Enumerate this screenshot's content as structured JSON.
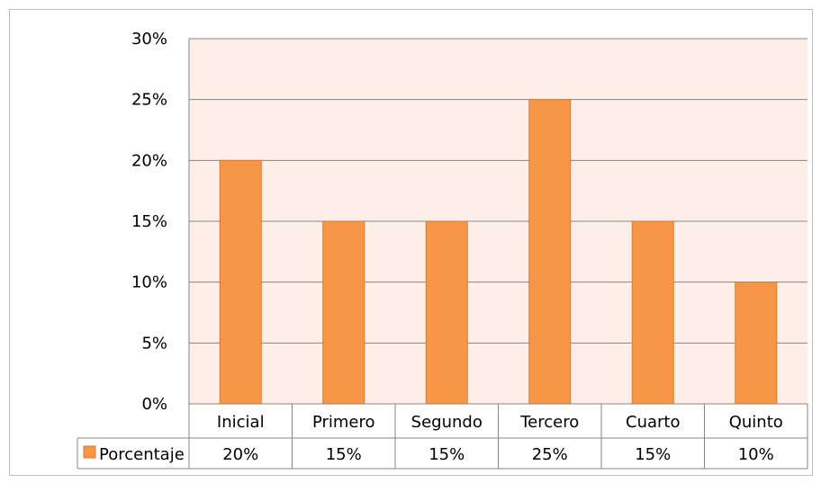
{
  "chart_data": {
    "type": "bar",
    "categories": [
      "Inicial",
      "Primero",
      "Segundo",
      "Tercero",
      "Cuarto",
      "Quinto"
    ],
    "series": [
      {
        "name": "Porcentaje",
        "values": [
          20,
          15,
          15,
          25,
          15,
          10
        ],
        "color": "#f79646"
      }
    ],
    "value_labels": [
      "20%",
      "15%",
      "15%",
      "25%",
      "15%",
      "10%"
    ],
    "y_ticks": [
      "0%",
      "5%",
      "10%",
      "15%",
      "20%",
      "25%",
      "30%"
    ],
    "ylim": [
      0,
      30
    ],
    "y_unit": "%",
    "grid": true,
    "legend": "data-table-left",
    "plot_background": "#fdeee8",
    "title": "",
    "xlabel": "",
    "ylabel": ""
  }
}
